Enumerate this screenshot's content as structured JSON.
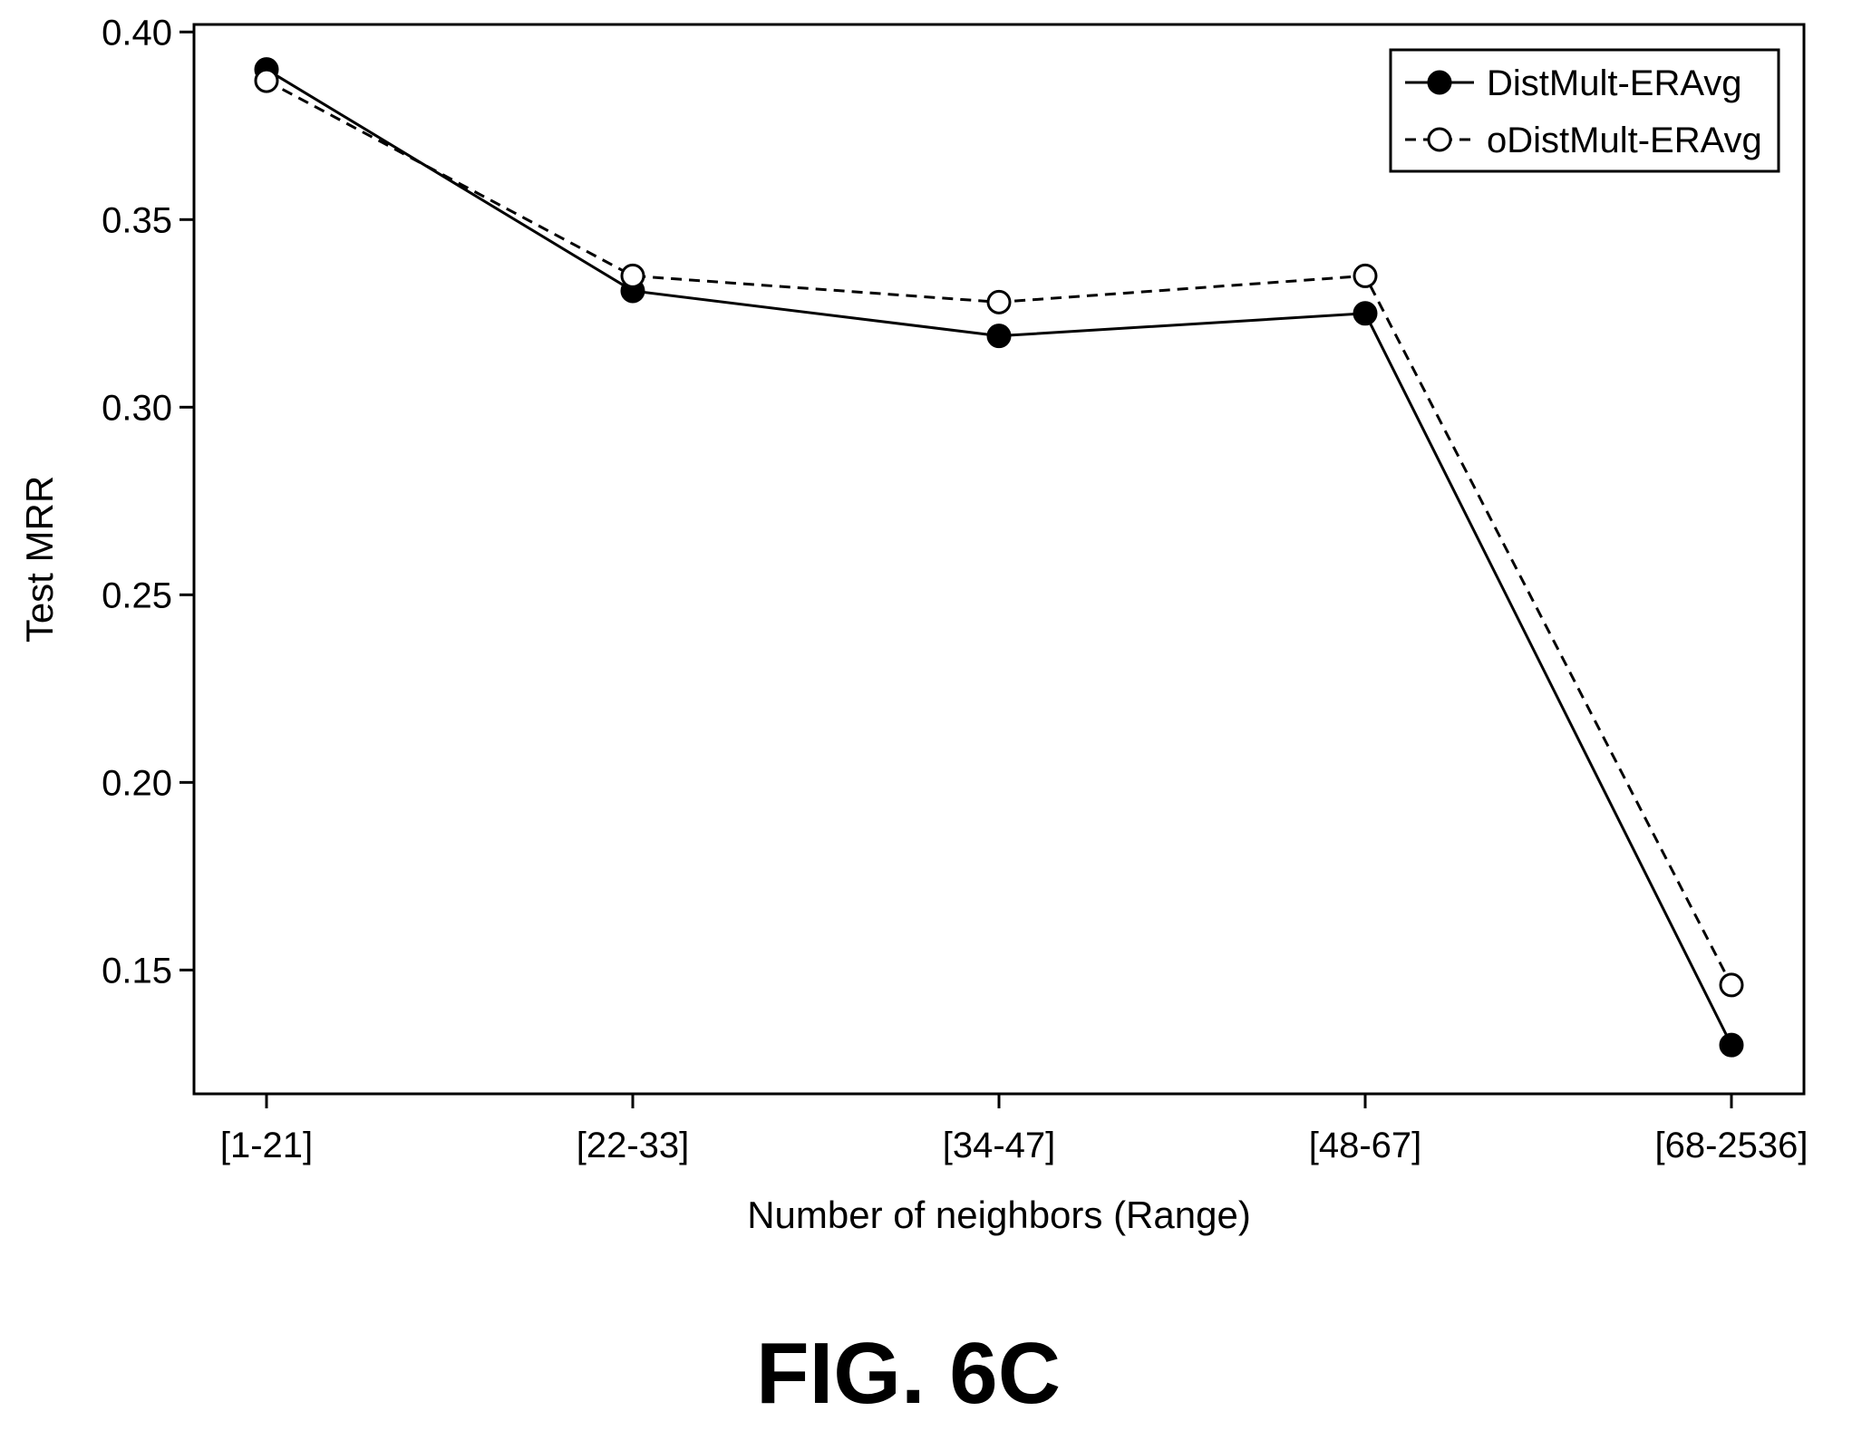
{
  "chart_data": {
    "type": "line",
    "title": "",
    "xlabel": "Number of neighbors (Range)",
    "ylabel": "Test MRR",
    "categories": [
      "[1-21]",
      "[22-33]",
      "[34-47]",
      "[48-67]",
      "[68-2536]"
    ],
    "ylim": [
      0.117,
      0.402
    ],
    "yticks": [
      0.15,
      0.2,
      0.25,
      0.3,
      0.35,
      0.4
    ],
    "ytick_labels": [
      "0.15",
      "0.20",
      "0.25",
      "0.30",
      "0.35",
      "0.40"
    ],
    "grid": false,
    "legend_position": "top-right",
    "series": [
      {
        "name": "DistMult-ERAvg",
        "values": [
          0.39,
          0.331,
          0.319,
          0.325,
          0.13
        ],
        "line_style": "solid",
        "marker": "filled-circle",
        "color": "#000000"
      },
      {
        "name": "oDistMult-ERAvg",
        "values": [
          0.387,
          0.335,
          0.328,
          0.335,
          0.146
        ],
        "line_style": "dashed",
        "marker": "open-circle",
        "color": "#000000"
      }
    ]
  },
  "figure_label": "FIG. 6C"
}
